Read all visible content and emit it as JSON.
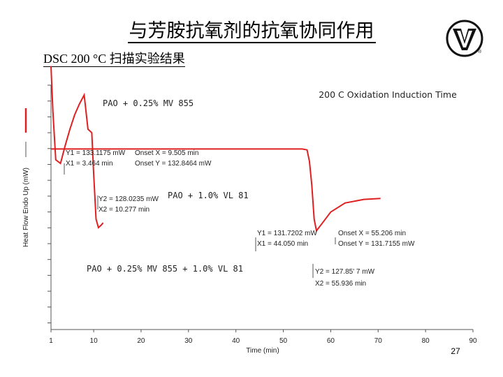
{
  "slide": {
    "title": "与芳胺抗氧剂的抗氧协同作用",
    "subtitle": "DSC 200 °C 扫描实验结果",
    "page_number": "27",
    "logo": {
      "mark": "V",
      "registered": "®",
      "icon": "logo-v-icon"
    }
  },
  "colors": {
    "curve": "#e02020",
    "axis": "#555555",
    "text": "#222222"
  },
  "chart_data": {
    "type": "line",
    "title": "200 C Oxidation Induction Time",
    "xlabel": "Time (min)",
    "ylabel": "Heat Flow Endo Up (mW)",
    "xlim": [
      1,
      90
    ],
    "x_ticks": [
      "1",
      "10",
      "20",
      "30",
      "40",
      "50",
      "60",
      "70",
      "80",
      "90"
    ],
    "x_tick_values": [
      1,
      10,
      20,
      30,
      40,
      50,
      60,
      70,
      80,
      90
    ],
    "series": [
      {
        "name": "PAO + 0.25% MV 855",
        "x": [
          1,
          1.4,
          2,
          3,
          4,
          5,
          6,
          7,
          8,
          8.8,
          9.6,
          10,
          10.5,
          11,
          11.5,
          12
        ],
        "y": [
          137.0,
          134.5,
          131.8,
          131.6,
          132.6,
          133.5,
          134.3,
          134.9,
          135.4,
          133.5,
          133.3,
          131.0,
          128.5,
          128.03,
          128.15,
          128.3
        ]
      },
      {
        "name": "PAO + 0.25% MV 855 + 1.0% VL 81",
        "x": [
          1,
          10,
          20,
          30,
          40,
          50,
          54,
          55,
          55.5,
          56,
          56.5,
          57,
          58,
          60,
          63,
          67,
          70.5
        ],
        "y": [
          132.4,
          132.4,
          132.4,
          132.4,
          132.4,
          132.4,
          132.4,
          132.35,
          131.72,
          130.4,
          128.5,
          127.86,
          128.2,
          128.9,
          129.4,
          129.6,
          129.65
        ]
      }
    ],
    "series_labels": [
      {
        "text": "PAO + 0.25% MV 855"
      },
      {
        "text": "PAO + 1.0% VL 81"
      },
      {
        "text": "PAO + 0.25% MV 855 + 1.0% VL 81"
      }
    ],
    "annotations": [
      {
        "text": "Y1 = 133.1175 mW"
      },
      {
        "text": "X1 = 3.464 min"
      },
      {
        "text": "Onset X = 9.505 min"
      },
      {
        "text": "Onset Y = 132.8464 mW"
      },
      {
        "text": "Y2 = 128.0235 mW"
      },
      {
        "text": "X2 = 10.277 min"
      },
      {
        "text": "Y1 = 131.7202 mW"
      },
      {
        "text": "X1 = 44.050 min"
      },
      {
        "text": "Onset X = 55.206 min"
      },
      {
        "text": "Onset Y = 131.7155 mW"
      },
      {
        "text": "Y2 = 127.85' 7 mW"
      },
      {
        "text": "X2 = 55.936 min"
      }
    ]
  }
}
